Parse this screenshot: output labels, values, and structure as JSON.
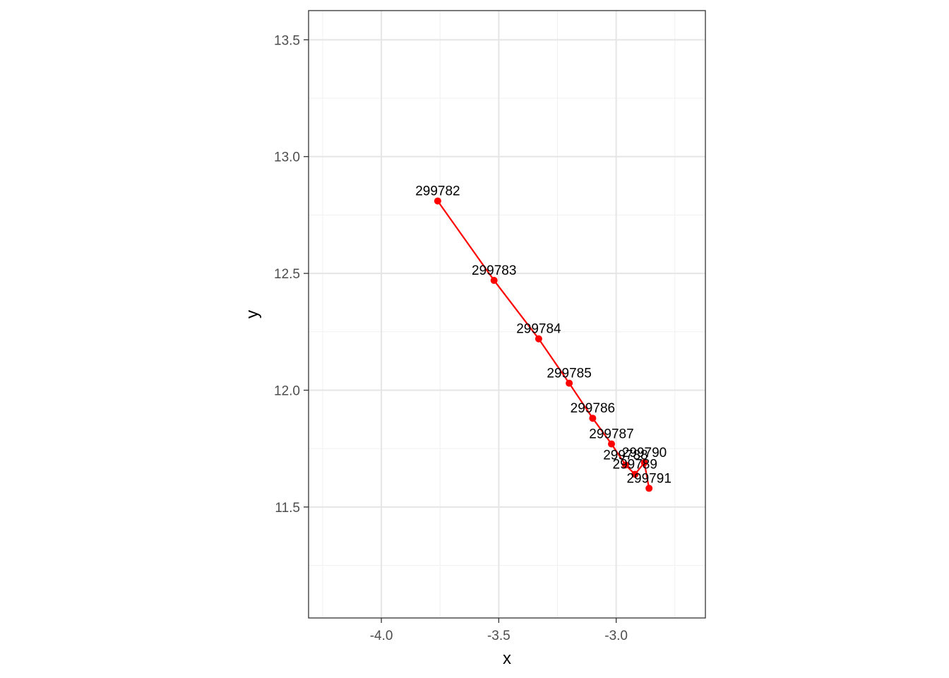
{
  "chart_data": {
    "type": "line",
    "title": "",
    "xlabel": "x",
    "ylabel": "y",
    "xlim": [
      -4.31,
      -2.62
    ],
    "ylim": [
      11.025,
      13.625
    ],
    "x_ticks": [
      -4.0,
      -3.5,
      -3.0
    ],
    "x_tick_labels": [
      "-4.0",
      "-3.5",
      "-3.0"
    ],
    "y_ticks": [
      11.5,
      12.0,
      12.5,
      13.0,
      13.5
    ],
    "y_tick_labels": [
      "11.5",
      "12.0",
      "12.5",
      "13.0",
      "13.5"
    ],
    "grid": true,
    "legend": "none",
    "series": [
      {
        "color": "#ff0000",
        "points": [
          {
            "label": "299782",
            "x": -3.76,
            "y": 12.81
          },
          {
            "label": "299783",
            "x": -3.52,
            "y": 12.47
          },
          {
            "label": "299784",
            "x": -3.33,
            "y": 12.22
          },
          {
            "label": "299785",
            "x": -3.2,
            "y": 12.03
          },
          {
            "label": "299786",
            "x": -3.1,
            "y": 11.88
          },
          {
            "label": "299787",
            "x": -3.02,
            "y": 11.77
          },
          {
            "label": "299788",
            "x": -2.96,
            "y": 11.68
          },
          {
            "label": "299789",
            "x": -2.92,
            "y": 11.64
          },
          {
            "label": "299790",
            "x": -2.88,
            "y": 11.69
          },
          {
            "label": "299791",
            "x": -2.86,
            "y": 11.58
          }
        ]
      }
    ]
  }
}
